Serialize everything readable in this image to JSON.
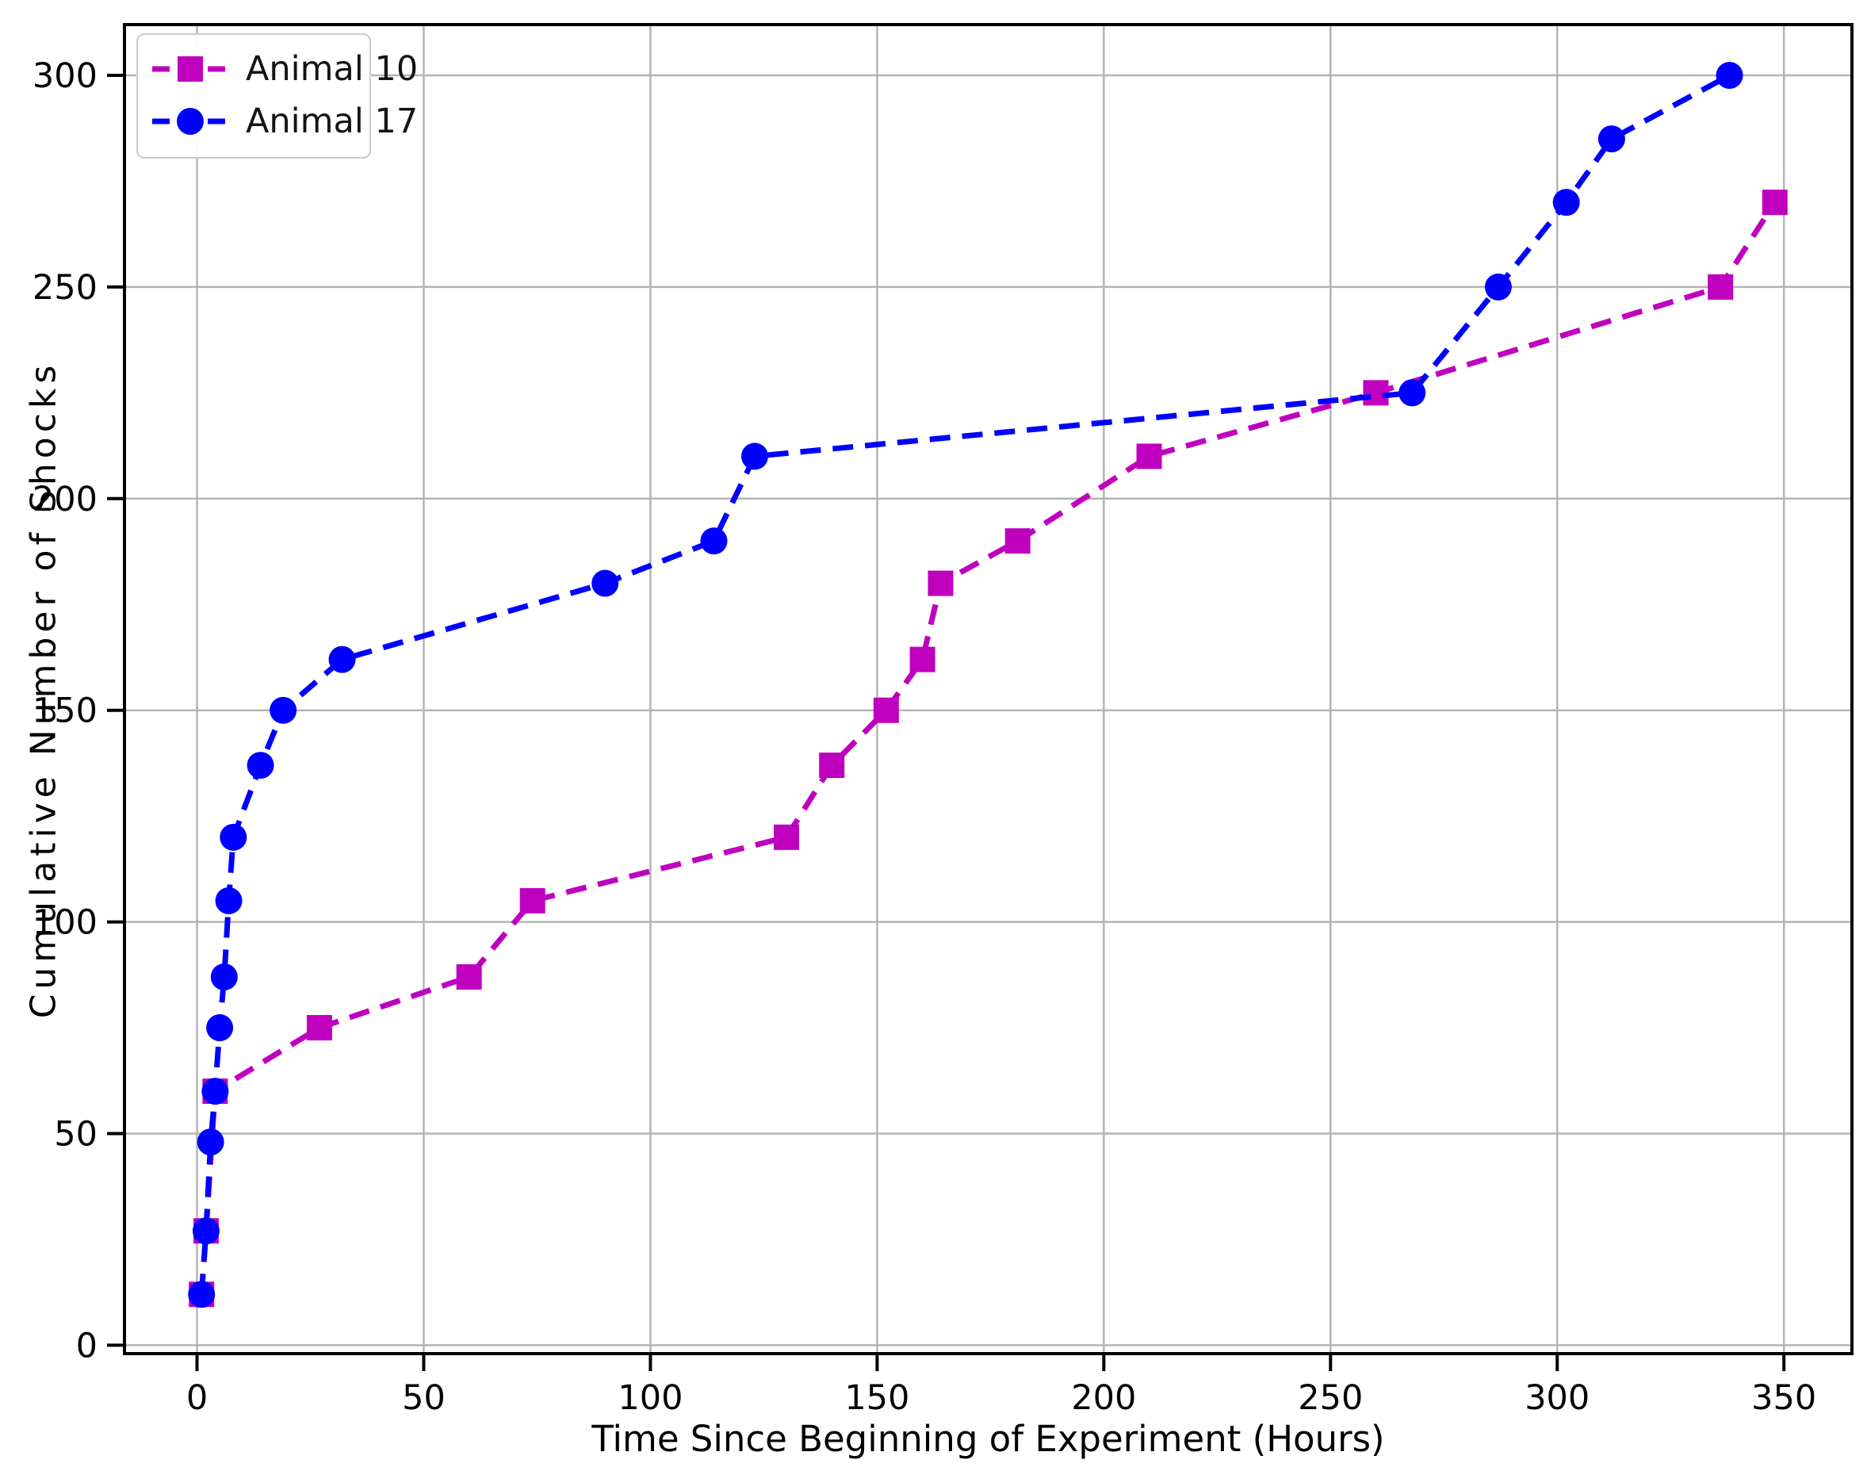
{
  "chart_data": {
    "type": "line",
    "title": "",
    "xlabel": "Time Since Beginning of Experiment (Hours)",
    "ylabel": "Cumulative Number of Shocks",
    "xticks": [
      0,
      50,
      100,
      150,
      200,
      250,
      300,
      350
    ],
    "yticks": [
      0,
      50,
      100,
      150,
      200,
      250,
      300
    ],
    "xlim": [
      -16,
      365
    ],
    "ylim": [
      -2,
      312
    ],
    "grid": true,
    "legend_position": "upper left",
    "line_style": "dashed",
    "series": [
      {
        "name": "Animal 10",
        "color": "#BF00BF",
        "marker": "square",
        "x": [
          1,
          2,
          4,
          27,
          60,
          74,
          130,
          140,
          152,
          160,
          164,
          181,
          210,
          260,
          336,
          348
        ],
        "y": [
          12,
          27,
          60,
          75,
          87,
          105,
          120,
          137,
          150,
          162,
          180,
          190,
          210,
          225,
          250,
          270
        ]
      },
      {
        "name": "Animal 17",
        "color": "#0000FF",
        "marker": "circle",
        "x": [
          1,
          2,
          3,
          4,
          5,
          6,
          7,
          8,
          14,
          19,
          32,
          90,
          114,
          123,
          268,
          287,
          302,
          312,
          338
        ],
        "y": [
          12,
          27,
          48,
          60,
          75,
          87,
          105,
          120,
          137,
          150,
          162,
          180,
          190,
          210,
          225,
          250,
          270,
          285,
          300
        ]
      }
    ],
    "colors": {
      "grid": "#b4b4b4",
      "spine": "#000000",
      "legend_border": "#cccccc",
      "text": "#000000"
    }
  }
}
